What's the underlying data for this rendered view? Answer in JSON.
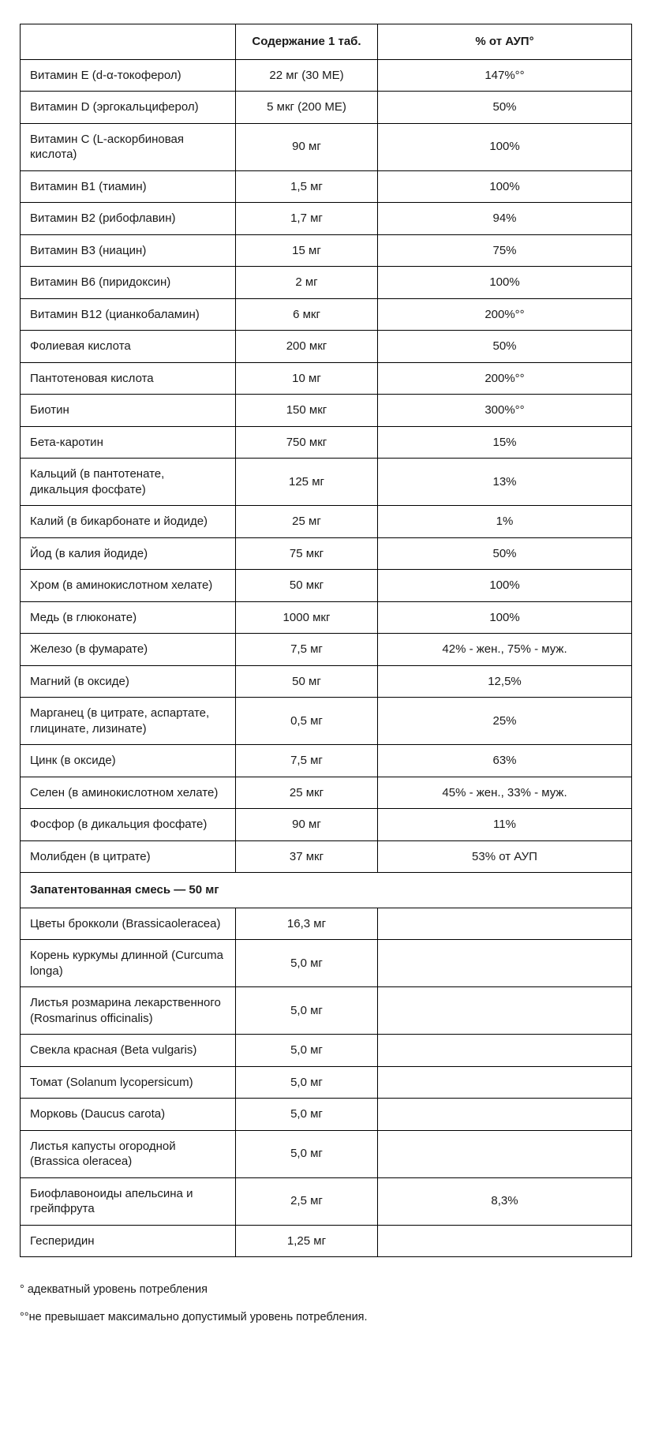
{
  "table": {
    "headers": [
      "",
      "Содержание 1 таб.",
      "% от АУП°"
    ],
    "rows": [
      {
        "name": "Витамин Е (d-α-токоферол)",
        "amount": "22 мг (30 МЕ)",
        "percent": "147%°°"
      },
      {
        "name": "Витамин D (эргокальциферол)",
        "amount": "5 мкг (200 МЕ)",
        "percent": "50%"
      },
      {
        "name": "Витамин С (L-аскорбиновая кислота)",
        "amount": "90 мг",
        "percent": "100%"
      },
      {
        "name": "Витамин В1 (тиамин)",
        "amount": "1,5 мг",
        "percent": "100%"
      },
      {
        "name": "Витамин В2 (рибофлавин)",
        "amount": "1,7 мг",
        "percent": "94%"
      },
      {
        "name": "Витамин В3 (ниацин)",
        "amount": "15 мг",
        "percent": "75%"
      },
      {
        "name": "Витамин В6 (пиридоксин)",
        "amount": "2 мг",
        "percent": "100%"
      },
      {
        "name": "Витамин В12 (цианкобаламин)",
        "amount": "6 мкг",
        "percent": "200%°°"
      },
      {
        "name": "Фолиевая кислота",
        "amount": "200 мкг",
        "percent": "50%"
      },
      {
        "name": "Пантотеновая кислота",
        "amount": "10 мг",
        "percent": "200%°°"
      },
      {
        "name": "Биотин",
        "amount": "150 мкг",
        "percent": "300%°°"
      },
      {
        "name": "Бета-каротин",
        "amount": "750 мкг",
        "percent": "15%"
      },
      {
        "name": "Кальций (в пантотенате, дикальция фосфате)",
        "amount": "125 мг",
        "percent": "13%"
      },
      {
        "name": "Калий (в бикарбонате и йодиде)",
        "amount": "25 мг",
        "percent": "1%"
      },
      {
        "name": "Йод (в калия йодиде)",
        "amount": "75 мкг",
        "percent": "50%"
      },
      {
        "name": "Хром (в аминокислотном хелате)",
        "amount": "50 мкг",
        "percent": "100%"
      },
      {
        "name": "Медь (в глюконате)",
        "amount": "1000 мкг",
        "percent": "100%"
      },
      {
        "name": "Железо (в фумарате)",
        "amount": "7,5 мг",
        "percent": "42% - жен., 75% - муж."
      },
      {
        "name": "Магний (в оксиде)",
        "amount": "50 мг",
        "percent": "12,5%"
      },
      {
        "name": "Марганец (в цитрате, аспартате, глицинате, лизинате)",
        "amount": "0,5 мг",
        "percent": "25%"
      },
      {
        "name": "Цинк (в оксиде)",
        "amount": "7,5 мг",
        "percent": "63%"
      },
      {
        "name": "Селен (в аминокислотном хелате)",
        "amount": "25 мкг",
        "percent": "45% - жен., 33% - муж."
      },
      {
        "name": "Фосфор (в дикальция фосфате)",
        "amount": "90 мг",
        "percent": "11%"
      },
      {
        "name": "Молибден (в цитрате)",
        "amount": "37 мкг",
        "percent": "53% от АУП"
      }
    ],
    "section_header": "Запатентованная смесь — 50 мг",
    "blend_rows": [
      {
        "name": "Цветы брокколи (Brassicaoleracea)",
        "amount": "16,3 мг",
        "percent": ""
      },
      {
        "name": "Корень куркумы длинной (Curcuma longa)",
        "amount": "5,0 мг",
        "percent": ""
      },
      {
        "name": "Листья розмарина лекарственного (Rosmarinus officinalis)",
        "amount": "5,0 мг",
        "percent": ""
      },
      {
        "name": "Свекла красная (Beta vulgaris)",
        "amount": "5,0 мг",
        "percent": ""
      },
      {
        "name": "Томат (Solanum lycopersicum)",
        "amount": "5,0 мг",
        "percent": ""
      },
      {
        "name": "Морковь (Daucus carota)",
        "amount": "5,0 мг",
        "percent": ""
      },
      {
        "name": "Листья капусты огородной (Brassica oleracea)",
        "amount": "5,0 мг",
        "percent": ""
      },
      {
        "name": "Биофлавоноиды апельсина и грейпфрута",
        "amount": "2,5 мг",
        "percent": "8,3%"
      },
      {
        "name": "Гесперидин",
        "amount": "1,25 мг",
        "percent": ""
      }
    ]
  },
  "footnotes": [
    "° адекватный уровень потребления",
    "°°не превышает максимально допустимый уровень потребления."
  ],
  "colors": {
    "text": "#1a1a1a",
    "border": "#000000",
    "background": "#ffffff"
  }
}
